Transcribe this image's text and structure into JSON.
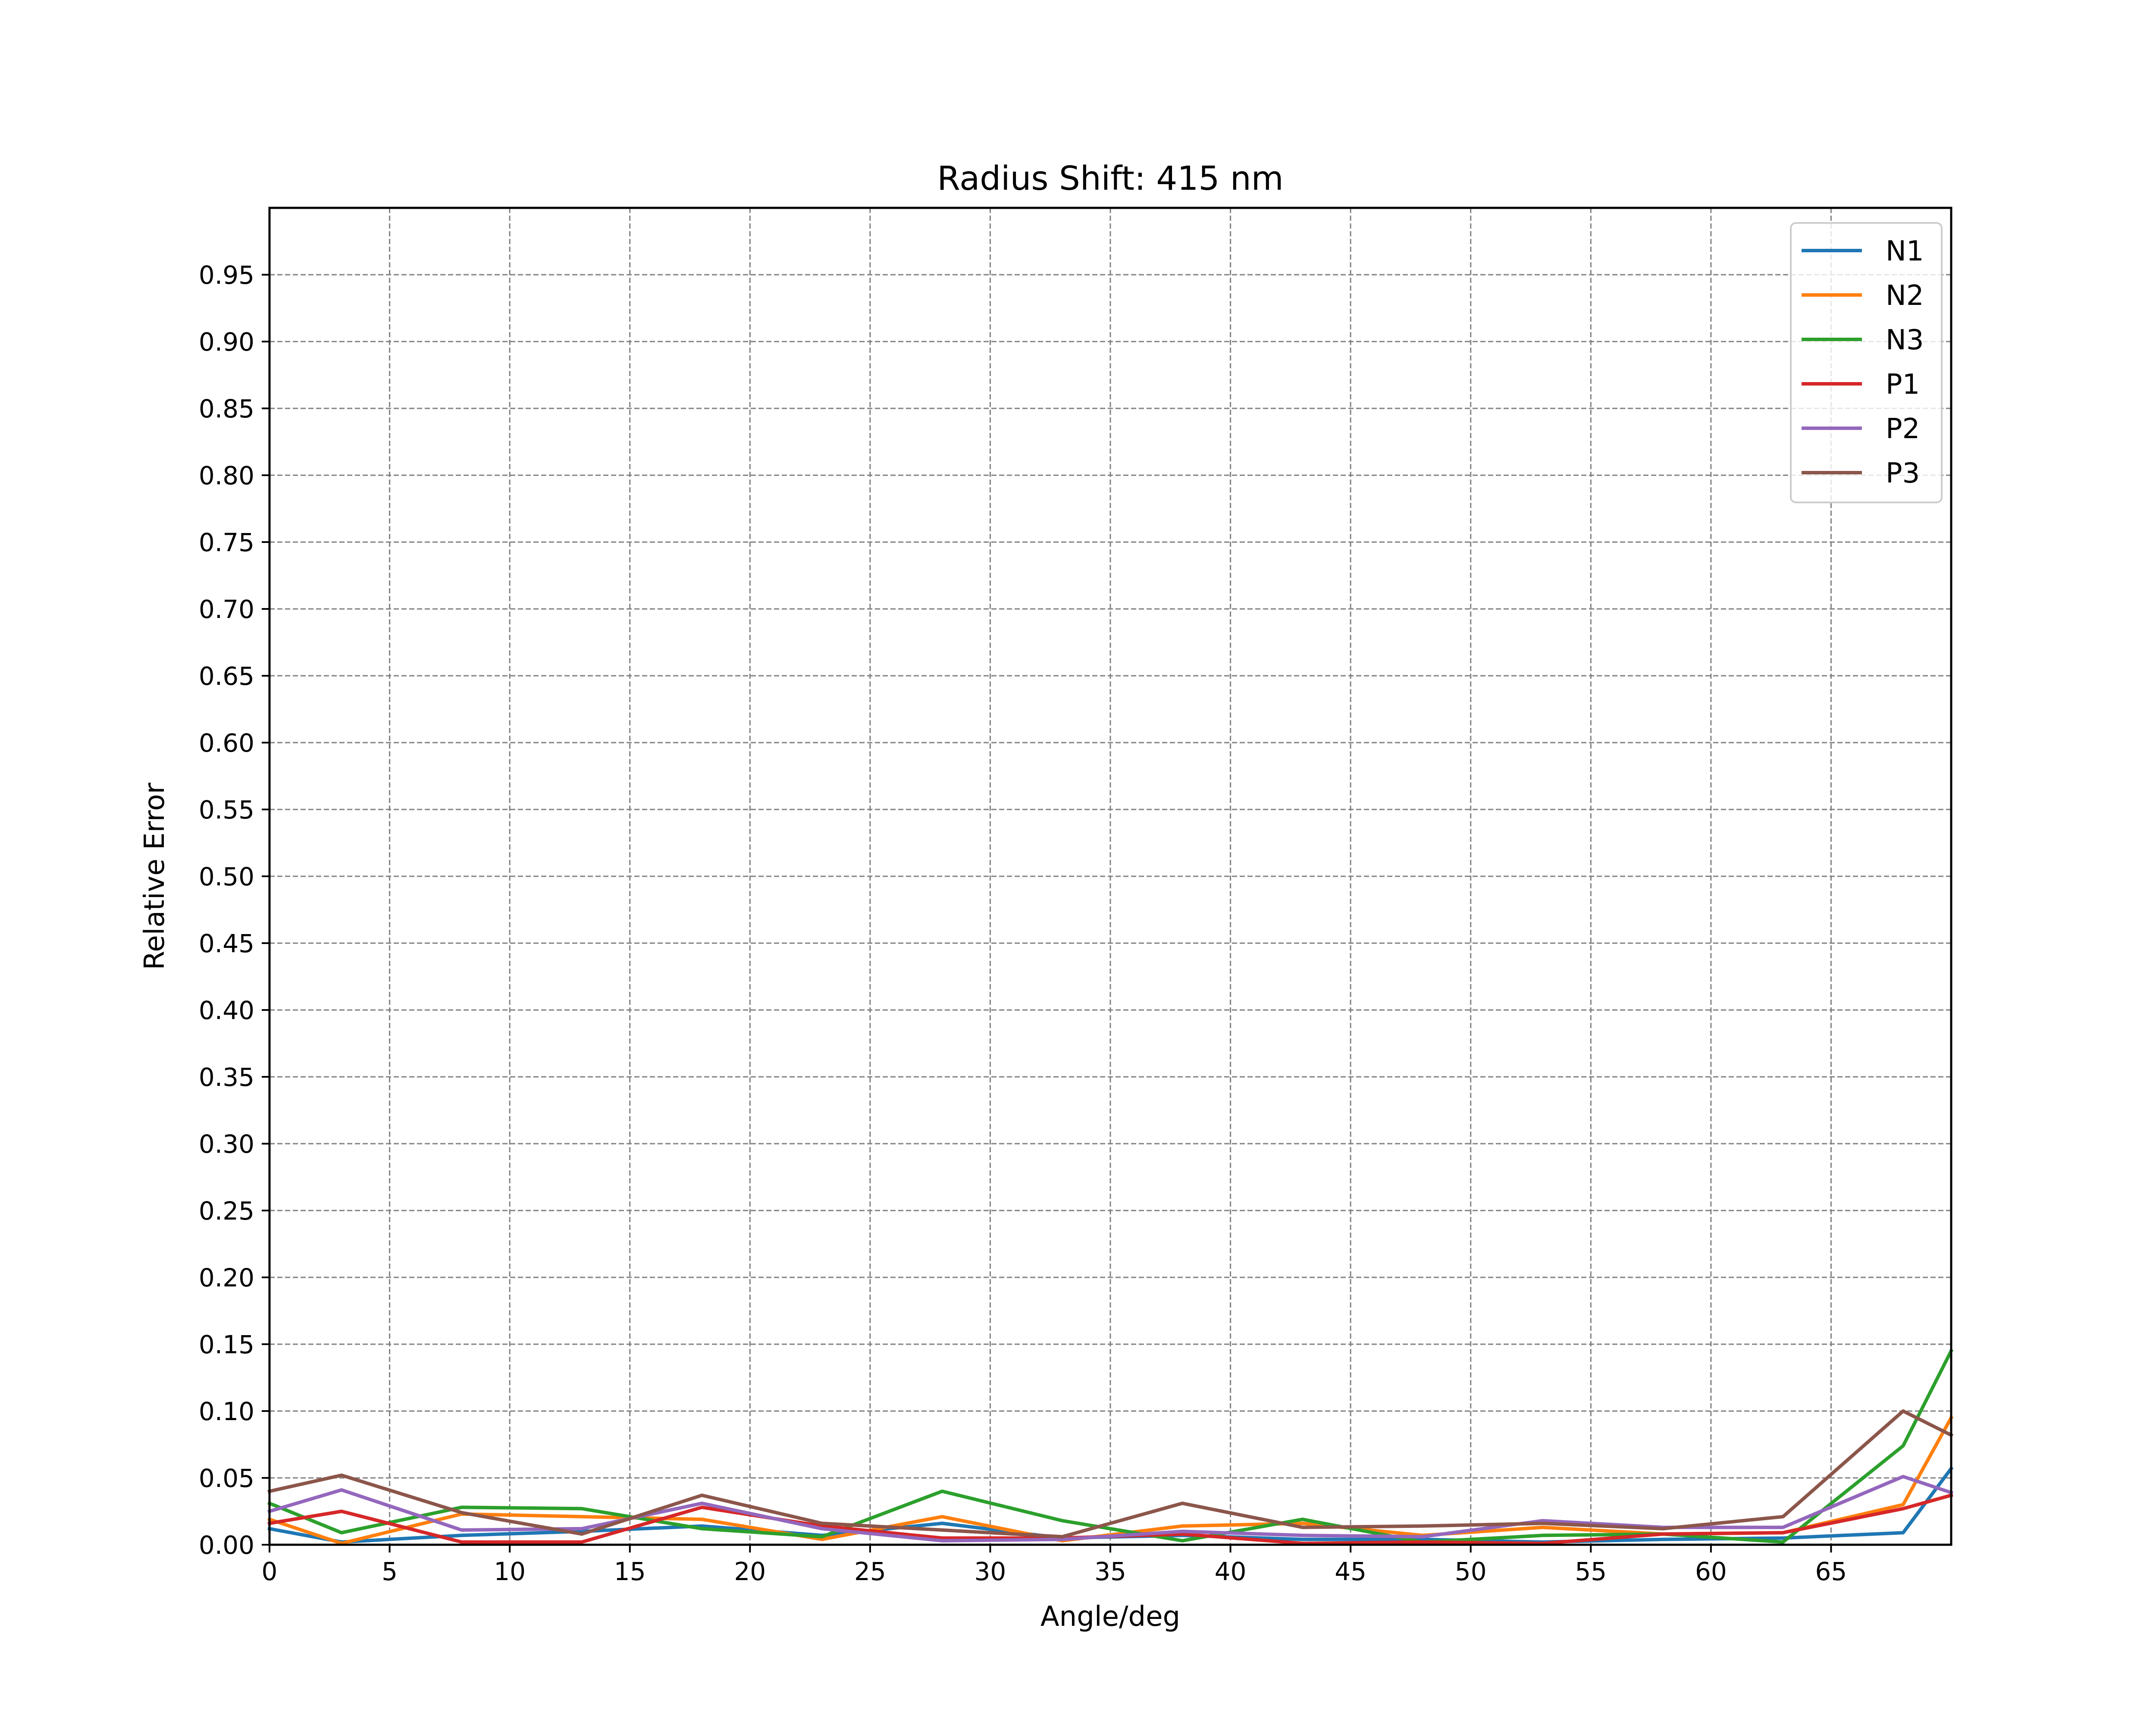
{
  "chart_data": {
    "type": "line",
    "title": "Radius Shift: 415 nm",
    "xlabel": "Angle/deg",
    "ylabel": "Relative Error",
    "xlim": [
      0,
      70
    ],
    "ylim": [
      0,
      1.0
    ],
    "xticks": [
      "0",
      "5",
      "10",
      "15",
      "20",
      "25",
      "30",
      "35",
      "40",
      "45",
      "50",
      "55",
      "60",
      "65"
    ],
    "yticks": [
      "0.00",
      "0.05",
      "0.10",
      "0.15",
      "0.20",
      "0.25",
      "0.30",
      "0.35",
      "0.40",
      "0.45",
      "0.50",
      "0.55",
      "0.60",
      "0.65",
      "0.70",
      "0.75",
      "0.80",
      "0.85",
      "0.90",
      "0.95"
    ],
    "grid": true,
    "legend_position": "top-right",
    "x": [
      0,
      3,
      8,
      13,
      18,
      23,
      28,
      33,
      38,
      43,
      48,
      53,
      58,
      63,
      68,
      70
    ],
    "series": [
      {
        "name": "N1",
        "color": "#1f77b4",
        "values": [
          0.012,
          0.002,
          0.007,
          0.01,
          0.014,
          0.007,
          0.016,
          0.005,
          0.007,
          0.004,
          0.004,
          0.002,
          0.004,
          0.005,
          0.009,
          0.057
        ]
      },
      {
        "name": "N2",
        "color": "#ff7f0e",
        "values": [
          0.019,
          0.001,
          0.023,
          0.021,
          0.019,
          0.004,
          0.021,
          0.003,
          0.014,
          0.016,
          0.007,
          0.013,
          0.008,
          0.009,
          0.03,
          0.095
        ]
      },
      {
        "name": "N3",
        "color": "#2ca02c",
        "values": [
          0.031,
          0.009,
          0.028,
          0.027,
          0.012,
          0.006,
          0.04,
          0.018,
          0.003,
          0.019,
          0.002,
          0.007,
          0.008,
          0.002,
          0.074,
          0.145
        ]
      },
      {
        "name": "P1",
        "color": "#d62728",
        "values": [
          0.016,
          0.025,
          0.002,
          0.002,
          0.028,
          0.014,
          0.005,
          0.005,
          0.008,
          0.001,
          0.002,
          0.001,
          0.008,
          0.009,
          0.027,
          0.037
        ]
      },
      {
        "name": "P2",
        "color": "#9467bd",
        "values": [
          0.025,
          0.041,
          0.011,
          0.012,
          0.031,
          0.012,
          0.003,
          0.004,
          0.01,
          0.007,
          0.006,
          0.018,
          0.013,
          0.013,
          0.051,
          0.039
        ]
      },
      {
        "name": "P3",
        "color": "#8c564b",
        "values": [
          0.04,
          0.052,
          0.024,
          0.008,
          0.037,
          0.016,
          0.011,
          0.006,
          0.031,
          0.013,
          0.014,
          0.016,
          0.012,
          0.021,
          0.1,
          0.082
        ]
      }
    ]
  }
}
